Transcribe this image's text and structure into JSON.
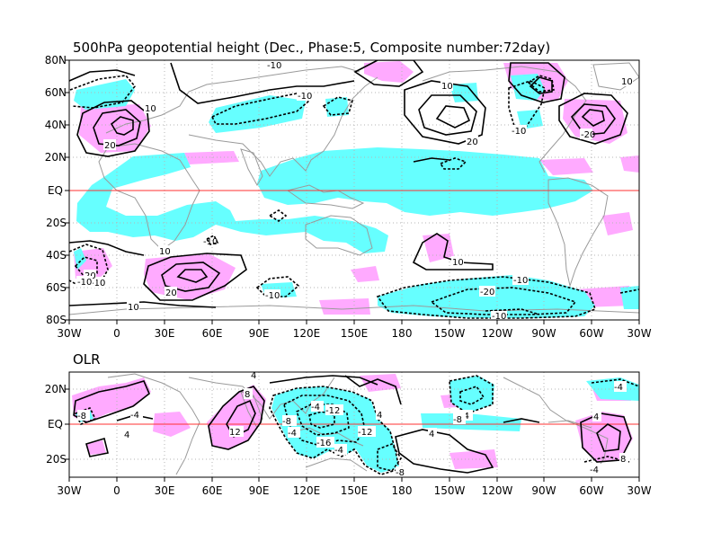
{
  "chart_data": [
    {
      "type": "contour-map",
      "title": "500hPa geopotential height (Dec., Phase:5, Composite number:72day)",
      "xlim": [
        "30W",
        "30W"
      ],
      "ylim": [
        "80S",
        "80N"
      ],
      "x_ticks": [
        "30W",
        "0",
        "30E",
        "60E",
        "90E",
        "120E",
        "150E",
        "180",
        "150W",
        "120W",
        "90W",
        "60W",
        "30W"
      ],
      "y_ticks": [
        "80N",
        "60N",
        "40N",
        "20N",
        "EQ",
        "20S",
        "40S",
        "60S",
        "80S"
      ],
      "grid": "dotted",
      "equator_line_color": "#ff3030",
      "shading": {
        "positive": "#ffaaff",
        "negative": "#66ffff"
      },
      "contour_labels": [
        "-10",
        "10",
        "20",
        "-10",
        "10",
        "20",
        "-10",
        "-20",
        "10",
        "-10",
        "20",
        "-10",
        "10",
        "20",
        "10",
        "-10",
        "-10",
        "10",
        "-10",
        "-20",
        "-10"
      ]
    },
    {
      "type": "contour-map",
      "title": "OLR",
      "x_ticks": [
        "30W",
        "0",
        "30E",
        "60E",
        "90E",
        "120E",
        "150E",
        "180",
        "150W",
        "120W",
        "90W",
        "60W",
        "30W"
      ],
      "y_ticks": [
        "20N",
        "EQ",
        "20S"
      ],
      "grid": "dotted",
      "equator_line_color": "#ff3030",
      "shading": {
        "positive": "#ffaaff",
        "negative": "#66ffff"
      },
      "contour_labels": [
        "4",
        "-8",
        "-4",
        "4",
        "8",
        "12",
        "-8",
        "-4",
        "-12",
        "-16",
        "-12",
        "-4",
        "-8",
        "-4",
        "4",
        "-4",
        "8",
        "4",
        "-4",
        "-4",
        "4",
        "-8"
      ]
    }
  ]
}
